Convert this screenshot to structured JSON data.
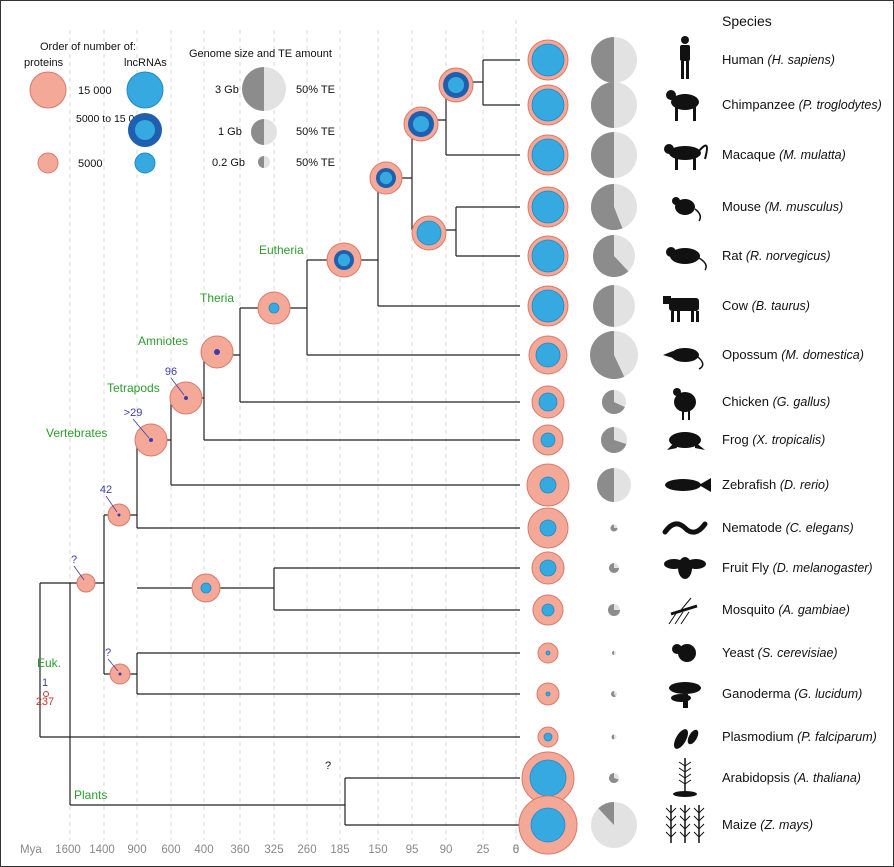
{
  "header": {
    "species_title": "Species"
  },
  "legend": {
    "order_title": "Order of number of:",
    "proteins_label": "proteins",
    "lncrnas_label": "lncRNAs",
    "big_label": "15 000",
    "mid_label": "5000 to 15 000",
    "small_label": "5000",
    "genome_title": "Genome size and TE amount",
    "g3_label": "3 Gb",
    "g1_label": "1 Gb",
    "g02_label": "0.2 Gb",
    "te_label": "50% TE"
  },
  "species": [
    {
      "name": "Human",
      "latin": "(H. sapiens)",
      "icon": "human-icon"
    },
    {
      "name": "Chimpanzee",
      "latin": "(P. troglodytes)",
      "icon": "chimpanzee-icon"
    },
    {
      "name": "Macaque",
      "latin": "(M. mulatta)",
      "icon": "macaque-icon"
    },
    {
      "name": "Mouse",
      "latin": "(M. musculus)",
      "icon": "mouse-icon"
    },
    {
      "name": "Rat",
      "latin": "(R. norvegicus)",
      "icon": "rat-icon"
    },
    {
      "name": "Cow",
      "latin": "(B. taurus)",
      "icon": "cow-icon"
    },
    {
      "name": "Opossum",
      "latin": "(M. domestica)",
      "icon": "opossum-icon"
    },
    {
      "name": "Chicken",
      "latin": "(G. gallus)",
      "icon": "chicken-icon"
    },
    {
      "name": "Frog",
      "latin": "(X. tropicalis)",
      "icon": "frog-icon"
    },
    {
      "name": "Zebrafish",
      "latin": "(D. rerio)",
      "icon": "zebrafish-icon"
    },
    {
      "name": "Nematode",
      "latin": "(C. elegans)",
      "icon": "nematode-icon"
    },
    {
      "name": "Fruit Fly",
      "latin": "(D. melanogaster)",
      "icon": "fruit-fly-icon"
    },
    {
      "name": "Mosquito",
      "latin": "(A. gambiae)",
      "icon": "mosquito-icon"
    },
    {
      "name": "Yeast",
      "latin": "(S. cerevisiae)",
      "icon": "yeast-icon"
    },
    {
      "name": "Ganoderma",
      "latin": "(G. lucidum)",
      "icon": "ganoderma-icon"
    },
    {
      "name": "Plasmodium",
      "latin": "(P. falciparum)",
      "icon": "plasmodium-icon"
    },
    {
      "name": "Arabidopsis",
      "latin": "(A. thaliana)",
      "icon": "arabidopsis-icon"
    },
    {
      "name": "Maize",
      "latin": "(Z. mays)",
      "icon": "maize-icon"
    }
  ],
  "clades": {
    "eutheria": "Eutheria",
    "theria": "Theria",
    "amniotes": "Amniotes",
    "tetrapods": "Tetrapods",
    "vertebrates": "Vertebrates",
    "euk": "Euk.",
    "plants": "Plants"
  },
  "node_counts": {
    "tetrapods": "96",
    "vertebrates": ">29",
    "bilateria": "42",
    "root": "?",
    "fungi": "?",
    "plants": "?",
    "euk_top": "1",
    "euk_bottom": "237"
  },
  "axis": {
    "unit": "Mya",
    "ticks": [
      "1600",
      "1400",
      "900",
      "600",
      "400",
      "360",
      "325",
      "260",
      "185",
      "150",
      "95",
      "90",
      "25",
      "6",
      "0"
    ]
  },
  "colors": {
    "protein_fill": "#f4a898",
    "protein_stroke": "#d97a6a",
    "lnc_light": "#35a9e0",
    "lnc_dark": "#1e5fb0",
    "genome_dark": "#8c8c8c",
    "genome_light": "#e2e2e2",
    "clade_text": "#2e9b2e",
    "count_text": "#3c3cb0"
  }
}
